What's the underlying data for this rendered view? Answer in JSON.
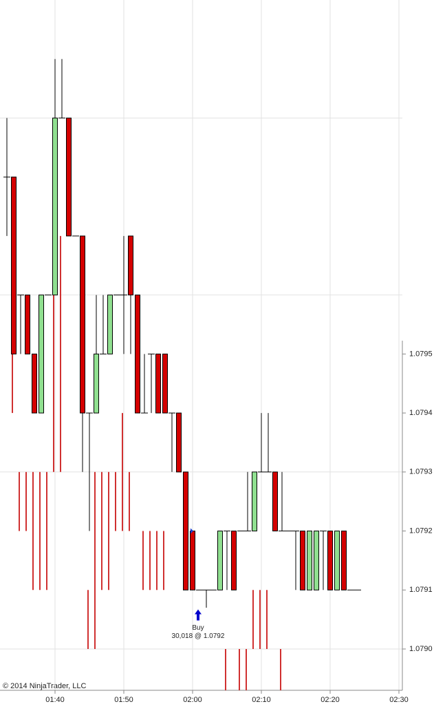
{
  "chart_data": {
    "type": "candlestick",
    "copyright": "© 2014 NinjaTrader, LLC",
    "xlim": [
      92,
      150.5
    ],
    "xticks": [
      {
        "value": 100,
        "label": "01:40"
      },
      {
        "value": 110,
        "label": "01:50"
      },
      {
        "value": 120,
        "label": "02:00"
      },
      {
        "value": 130,
        "label": "02:10"
      },
      {
        "value": 140,
        "label": "02:20"
      },
      {
        "value": 150,
        "label": "02:30"
      }
    ],
    "ylim": [
      1.07893,
      1.0801
    ],
    "yticks": [
      1.0795,
      1.0794,
      1.0793,
      1.0792,
      1.0791,
      {
        "value": 1.079,
        "label": "1.0790"
      }
    ],
    "ygrid": [
      1.0799,
      1.0796,
      1.0793,
      1.079
    ],
    "grid": true,
    "up_color": "#90e090",
    "down_color": "#d40000",
    "x": [
      93,
      94,
      95,
      96,
      97,
      98,
      99,
      100,
      101,
      102,
      103,
      104,
      105,
      106,
      107,
      108,
      109,
      110,
      111,
      112,
      113,
      114,
      115,
      116,
      117,
      118,
      119,
      120,
      121,
      122,
      123,
      124,
      125,
      126,
      127,
      128,
      129,
      130,
      131,
      132,
      133,
      134,
      135,
      136,
      137,
      138,
      139,
      140,
      141,
      142,
      143,
      144
    ],
    "open": [
      1.0798,
      1.0798,
      1.0796,
      1.0796,
      1.0795,
      1.0794,
      1.0796,
      1.0796,
      1.0799,
      1.0799,
      1.0797,
      1.0797,
      1.0794,
      1.0794,
      1.0795,
      1.0795,
      1.0796,
      1.0796,
      1.0797,
      1.0796,
      1.0794,
      1.0795,
      1.0795,
      1.0795,
      1.0794,
      1.0794,
      1.0793,
      1.0792,
      1.0791,
      1.0791,
      1.0791,
      1.0791,
      1.0792,
      1.0792,
      1.0792,
      1.0792,
      1.0792,
      1.0793,
      1.0793,
      1.0793,
      1.0792,
      1.0792,
      1.0792,
      1.0792,
      1.0791,
      1.0791,
      1.0792,
      1.0792,
      1.0791,
      1.0792,
      1.0791,
      1.0791
    ],
    "high": [
      1.0799,
      1.0798,
      1.0796,
      1.0796,
      1.0795,
      1.0796,
      1.0796,
      1.08,
      1.08,
      1.0799,
      1.0797,
      1.0797,
      1.0794,
      1.0796,
      1.0796,
      1.0796,
      1.0796,
      1.0797,
      1.0797,
      1.0796,
      1.0795,
      1.0795,
      1.0795,
      1.0795,
      1.0794,
      1.0794,
      1.0793,
      1.0792,
      1.0791,
      1.0791,
      1.0791,
      1.0792,
      1.0792,
      1.0792,
      1.0792,
      1.0793,
      1.0793,
      1.0794,
      1.0794,
      1.0793,
      1.0793,
      1.0792,
      1.0792,
      1.0792,
      1.0792,
      1.0792,
      1.0792,
      1.0792,
      1.0792,
      1.0792,
      1.0791,
      1.0791
    ],
    "low": [
      1.0797,
      1.0795,
      1.0795,
      1.0795,
      1.0794,
      1.0794,
      1.0796,
      1.0796,
      1.0799,
      1.0797,
      1.0797,
      1.0793,
      1.0792,
      1.0794,
      1.0795,
      1.0795,
      1.0796,
      1.0795,
      1.0795,
      1.0794,
      1.0794,
      1.0794,
      1.0794,
      1.0794,
      1.0793,
      1.0793,
      1.0791,
      1.0791,
      1.0791,
      1.07907,
      1.0791,
      1.0791,
      1.0791,
      1.0791,
      1.0792,
      1.0792,
      1.0792,
      1.0793,
      1.0793,
      1.0792,
      1.0792,
      1.0792,
      1.0791,
      1.0791,
      1.0791,
      1.0791,
      1.0791,
      1.0791,
      1.0791,
      1.0791,
      1.0791,
      1.0791
    ],
    "close": [
      1.0798,
      1.0795,
      1.0796,
      1.0795,
      1.0794,
      1.0796,
      1.0796,
      1.0799,
      1.0799,
      1.0797,
      1.0797,
      1.0794,
      1.0794,
      1.0795,
      1.0795,
      1.0796,
      1.0796,
      1.0796,
      1.0796,
      1.0794,
      1.0794,
      1.0795,
      1.0794,
      1.0794,
      1.0794,
      1.0793,
      1.0791,
      1.0791,
      1.0791,
      1.0791,
      1.0791,
      1.0792,
      1.0792,
      1.0791,
      1.0792,
      1.0792,
      1.0793,
      1.0793,
      1.0793,
      1.0792,
      1.0792,
      1.0792,
      1.0792,
      1.0791,
      1.0792,
      1.0792,
      1.0792,
      1.0791,
      1.0792,
      1.0791,
      1.0791,
      1.0791
    ],
    "ranges": {
      "color": "#d03030",
      "x": [
        94,
        95,
        96,
        97,
        98,
        99,
        100,
        101,
        105,
        106,
        107,
        108,
        109,
        110,
        111,
        113,
        114,
        115,
        116,
        125,
        127,
        128,
        129,
        130,
        131,
        133
      ],
      "high": [
        1.0795,
        1.0793,
        1.0793,
        1.0793,
        1.0793,
        1.0793,
        1.0797,
        1.0797,
        1.0791,
        1.0793,
        1.0793,
        1.0793,
        1.0793,
        1.0794,
        1.0793,
        1.0792,
        1.0792,
        1.0792,
        1.0792,
        1.079,
        1.079,
        1.079,
        1.0791,
        1.0791,
        1.0791,
        1.079
      ],
      "low": [
        1.0794,
        1.0792,
        1.0792,
        1.0791,
        1.0791,
        1.0791,
        1.0793,
        1.0793,
        1.079,
        1.079,
        1.0791,
        1.0791,
        1.0792,
        1.0792,
        1.0792,
        1.0791,
        1.0791,
        1.0791,
        1.0791,
        1.07893,
        1.07893,
        1.07893,
        1.079,
        1.079,
        1.079,
        1.07893
      ]
    },
    "annotation": {
      "text": "Buy",
      "detail": "30,018 @ 1.0792",
      "x": 120.8,
      "price": 1.0792
    }
  }
}
